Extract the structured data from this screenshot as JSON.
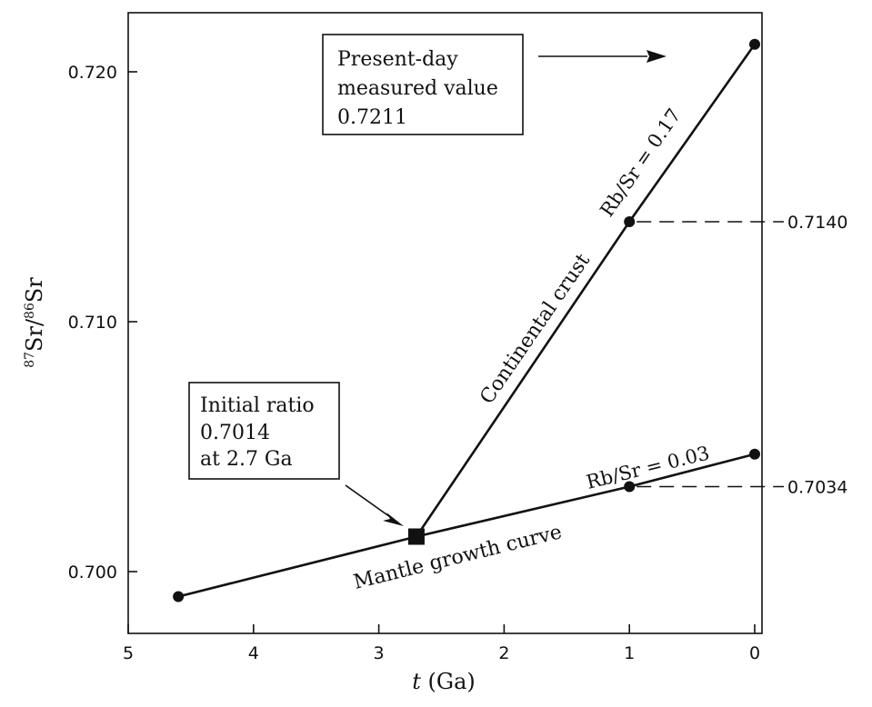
{
  "chart_data": {
    "type": "line",
    "title": "",
    "xlabel_italic": "t",
    "xlabel_rest": " (Ga)",
    "ylabel_sup1": "87",
    "ylabel_mid": "Sr/",
    "ylabel_sup2": "86",
    "ylabel_end": "Sr",
    "xlim": [
      5,
      0
    ],
    "ylim": [
      0.6976,
      0.7222
    ],
    "x_ticks": [
      5,
      4,
      3,
      2,
      1,
      0
    ],
    "x_tick_labels": [
      "5",
      "4",
      "3",
      "2",
      "1",
      "0"
    ],
    "y_ticks": [
      0.7,
      0.71,
      0.72
    ],
    "y_tick_labels": [
      "0.700",
      "0.710",
      "0.720"
    ],
    "grid": false,
    "series": [
      {
        "name": "Mantle growth curve",
        "points": [
          {
            "x": 4.6,
            "y": 0.699
          },
          {
            "x": 2.7,
            "y": 0.7014
          },
          {
            "x": 1.0,
            "y": 0.7034
          },
          {
            "x": 0.0,
            "y": 0.7047
          }
        ]
      },
      {
        "name": "Continental crust",
        "points": [
          {
            "x": 2.7,
            "y": 0.7014
          },
          {
            "x": 1.0,
            "y": 0.714
          },
          {
            "x": 0.0,
            "y": 0.7211
          }
        ]
      }
    ],
    "annotations": {
      "mantle_rb_sr": "Rb/Sr = 0.03",
      "crust_rb_sr": "Rb/Sr = 0.17",
      "crust_ref_value": "0.7140",
      "mantle_ref_value": "0.7034",
      "present_day": [
        "Present-day",
        "measured value",
        "0.7211"
      ],
      "initial_ratio": [
        "Initial ratio",
        "0.7014",
        "at 2.7 Ga"
      ]
    },
    "marker_initial": {
      "x": 2.7,
      "y": 0.7014
    }
  }
}
